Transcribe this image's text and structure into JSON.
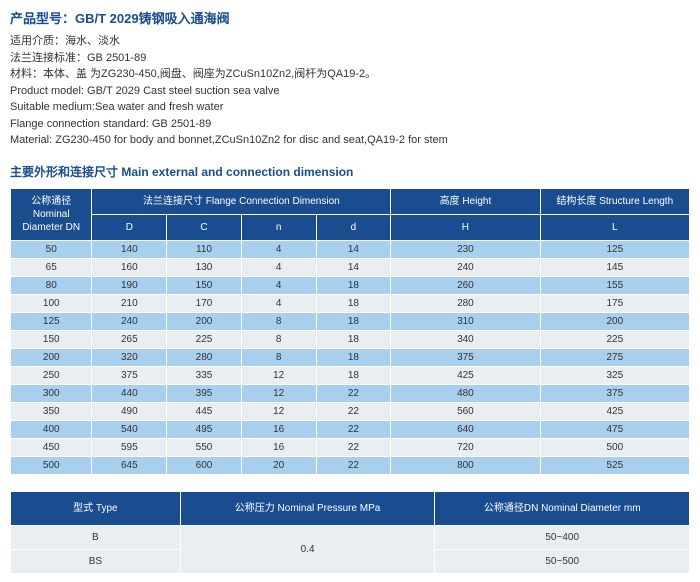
{
  "product": {
    "title_zh": "产品型号：GB/T 2029铸钢吸入通海阀",
    "info_lines": [
      "适用介质：海水、淡水",
      "法兰连接标准：GB 2501-89",
      "材料：本体、盖 为ZG230-450,阀盘、阀座为ZCuSn10Zn2,阀杆为QA19-2。",
      "Product model: GB/T 2029 Cast steel suction sea valve",
      "Suitable medium:Sea water and fresh water",
      "Flange connection standard: GB 2501-89",
      "Material: ZG230-450 for body and bonnet,ZCuSn10Zn2 for disc and seat,QA19-2 for stem"
    ],
    "section_title": "主要外形和连接尺寸 Main external and connection  dimension"
  },
  "table1": {
    "headers": {
      "dn": "公称通径\nNominal\nDiameter\nDN",
      "flange": "法兰连接尺寸\nFlange Connection Dimension",
      "height": "高度\nHeight",
      "structure": "结构长度\nStructure Length",
      "D": "D",
      "C": "C",
      "n": "n",
      "d": "d",
      "H": "H",
      "L": "L"
    },
    "rows": [
      [
        "50",
        "140",
        "110",
        "4",
        "14",
        "230",
        "125"
      ],
      [
        "65",
        "160",
        "130",
        "4",
        "14",
        "240",
        "145"
      ],
      [
        "80",
        "190",
        "150",
        "4",
        "18",
        "260",
        "155"
      ],
      [
        "100",
        "210",
        "170",
        "4",
        "18",
        "280",
        "175"
      ],
      [
        "125",
        "240",
        "200",
        "8",
        "18",
        "310",
        "200"
      ],
      [
        "150",
        "265",
        "225",
        "8",
        "18",
        "340",
        "225"
      ],
      [
        "200",
        "320",
        "280",
        "8",
        "18",
        "375",
        "275"
      ],
      [
        "250",
        "375",
        "335",
        "12",
        "18",
        "425",
        "325"
      ],
      [
        "300",
        "440",
        "395",
        "12",
        "22",
        "480",
        "375"
      ],
      [
        "350",
        "490",
        "445",
        "12",
        "22",
        "560",
        "425"
      ],
      [
        "400",
        "540",
        "495",
        "16",
        "22",
        "640",
        "475"
      ],
      [
        "450",
        "595",
        "550",
        "16",
        "22",
        "720",
        "500"
      ],
      [
        "500",
        "645",
        "600",
        "20",
        "22",
        "800",
        "525"
      ]
    ],
    "col_widths": [
      "12%",
      "11%",
      "11%",
      "11%",
      "11%",
      "22%",
      "22%"
    ],
    "colors": {
      "header_bg": "#1a4d8f",
      "row_even": "#a8cfee",
      "row_odd": "#e8eef2"
    }
  },
  "table2": {
    "headers": {
      "type": "型式\nType",
      "pressure": "公称压力\nNominal Pressure\nMPa",
      "dn": "公称通径DN\nNominal Diameter\nmm"
    },
    "rows": [
      {
        "type": "B",
        "pressure": "0.4",
        "dn": "50~400"
      },
      {
        "type": "BS",
        "pressure": "",
        "dn": "50~500"
      }
    ],
    "col_widths": [
      "25%",
      "37.5%",
      "37.5%"
    ]
  }
}
